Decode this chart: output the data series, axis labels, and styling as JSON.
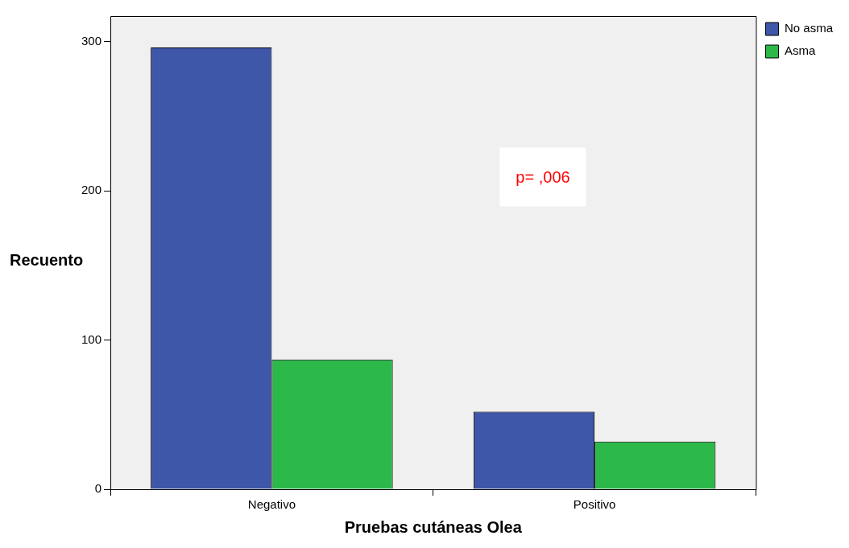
{
  "chart_data": {
    "type": "bar",
    "xlabel": "Pruebas cutáneas Olea",
    "ylabel": "Recuento",
    "categories": [
      "Negativo",
      "Positivo"
    ],
    "series": [
      {
        "name": "No asma",
        "color": "#3f57a8",
        "values": [
          296,
          52
        ]
      },
      {
        "name": "Asma",
        "color": "#2db84a",
        "values": [
          87,
          32
        ]
      }
    ],
    "ylim": [
      0,
      317
    ],
    "yticks": [
      0,
      100,
      200,
      300
    ],
    "grid": false,
    "legend": "right",
    "annotations": [
      "p= ,006"
    ]
  }
}
